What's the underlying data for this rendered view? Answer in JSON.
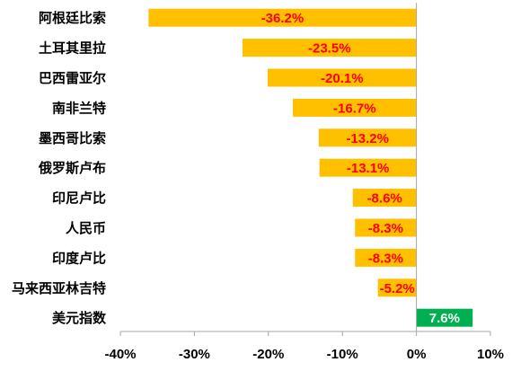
{
  "chart_data": {
    "type": "bar",
    "orientation": "horizontal",
    "categories": [
      "阿根廷比索",
      "土耳其里拉",
      "巴西雷亚尔",
      "南非兰特",
      "墨西哥比索",
      "俄罗斯卢布",
      "印尼卢比",
      "人民币",
      "印度卢比",
      "马来西亚林吉特",
      "美元指数"
    ],
    "values": [
      -36.2,
      -23.5,
      -20.1,
      -16.7,
      -13.2,
      -13.1,
      -8.6,
      -8.3,
      -8.3,
      -5.2,
      7.6
    ],
    "value_labels": [
      "-36.2%",
      "-23.5%",
      "-20.1%",
      "-16.7%",
      "-13.2%",
      "-13.1%",
      "-8.6%",
      "-8.3%",
      "-8.3%",
      "-5.2%",
      "7.6%"
    ],
    "xlim": [
      -40,
      10
    ],
    "xticks": [
      -40,
      -30,
      -20,
      -10,
      0,
      10
    ],
    "xtick_labels": [
      "-40%",
      "-30%",
      "-20%",
      "-10%",
      "0%",
      "10%"
    ],
    "title": "",
    "xlabel": "",
    "ylabel": "",
    "grid": false,
    "colors": {
      "negative_bar": "#FFC000",
      "positive_bar": "#00B050",
      "negative_label": "#FF0000",
      "positive_label": "#FFFFFF",
      "axis": "#A6A6A6"
    }
  }
}
